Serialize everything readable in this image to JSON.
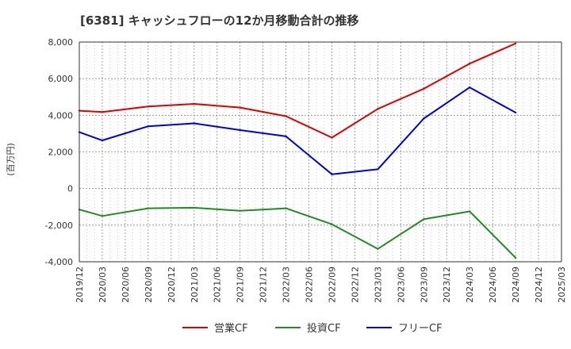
{
  "chart_data": {
    "type": "line",
    "title": "[6381]  キャッシュフローの12か月移動合計の推移",
    "ylabel": "(百万円)",
    "xlabel": "",
    "ylim": [
      -4000,
      8000
    ],
    "yticks": [
      8000,
      6000,
      4000,
      2000,
      0,
      -2000,
      -4000
    ],
    "ytick_labels": [
      "8,000",
      "6,000",
      "4,000",
      "2,000",
      "0",
      "-2,000",
      "-4,000"
    ],
    "categories": [
      "2019/12",
      "2020/03",
      "2020/06",
      "2020/09",
      "2020/12",
      "2021/03",
      "2021/06",
      "2021/09",
      "2021/12",
      "2022/03",
      "2022/06",
      "2022/09",
      "2022/12",
      "2023/03",
      "2023/06",
      "2023/09",
      "2023/12",
      "2024/03",
      "2024/06",
      "2024/09",
      "2024/12",
      "2025/03"
    ],
    "grid": true,
    "legend_position": "bottom",
    "series": [
      {
        "name": "営業CF",
        "color": "#dd0000",
        "points": [
          [
            "2019/12",
            4250
          ],
          [
            "2020/03",
            4180
          ],
          [
            "2020/09",
            4480
          ],
          [
            "2021/03",
            4620
          ],
          [
            "2021/09",
            4420
          ],
          [
            "2022/03",
            3950
          ],
          [
            "2022/09",
            2780
          ],
          [
            "2023/03",
            4350
          ],
          [
            "2023/09",
            5450
          ],
          [
            "2024/03",
            6820
          ],
          [
            "2024/09",
            7920
          ]
        ]
      },
      {
        "name": "投資CF",
        "color": "#228b22",
        "points": [
          [
            "2019/12",
            -1150
          ],
          [
            "2020/03",
            -1500
          ],
          [
            "2020/09",
            -1080
          ],
          [
            "2021/03",
            -1050
          ],
          [
            "2021/09",
            -1220
          ],
          [
            "2022/03",
            -1080
          ],
          [
            "2022/09",
            -1950
          ],
          [
            "2023/03",
            -3300
          ],
          [
            "2023/09",
            -1680
          ],
          [
            "2024/03",
            -1250
          ],
          [
            "2024/09",
            -3780
          ]
        ]
      },
      {
        "name": "フリーCF",
        "color": "#0000dd",
        "points": [
          [
            "2019/12",
            3080
          ],
          [
            "2020/03",
            2630
          ],
          [
            "2020/09",
            3400
          ],
          [
            "2021/03",
            3560
          ],
          [
            "2021/09",
            3190
          ],
          [
            "2022/03",
            2850
          ],
          [
            "2022/09",
            780
          ],
          [
            "2023/03",
            1050
          ],
          [
            "2023/09",
            3820
          ],
          [
            "2024/03",
            5520
          ],
          [
            "2024/09",
            4150
          ]
        ]
      }
    ]
  }
}
